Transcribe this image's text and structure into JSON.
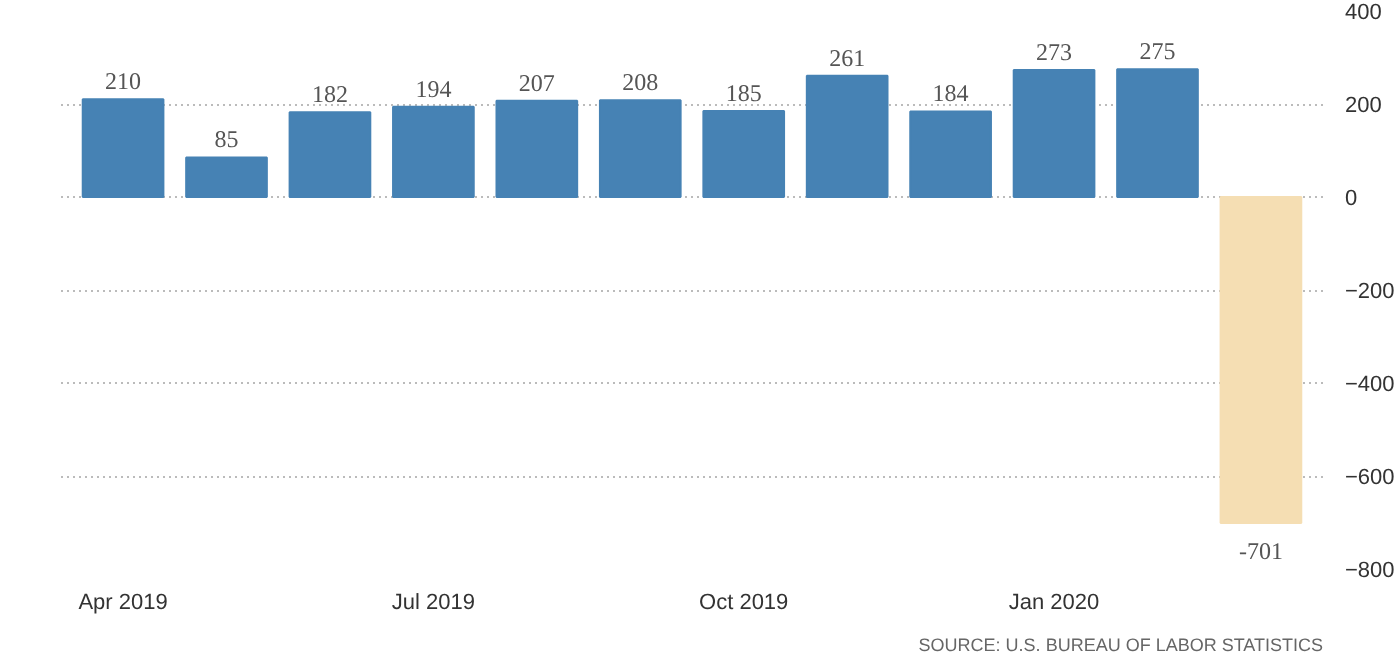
{
  "chart_data": {
    "type": "bar",
    "categories": [
      "Apr 2019",
      null,
      null,
      "Jul 2019",
      null,
      null,
      "Oct 2019",
      null,
      null,
      "Jan 2020",
      null,
      null
    ],
    "values": [
      210,
      85,
      182,
      194,
      207,
      208,
      185,
      261,
      184,
      273,
      275,
      -701
    ],
    "colors": [
      "#4682b4",
      "#4682b4",
      "#4682b4",
      "#4682b4",
      "#4682b4",
      "#4682b4",
      "#4682b4",
      "#4682b4",
      "#4682b4",
      "#4682b4",
      "#4682b4",
      "#f5deb3"
    ],
    "ylim": [
      -800,
      400
    ],
    "yticks": [
      -800,
      -600,
      -400,
      -200,
      0,
      200,
      400
    ],
    "grid": "y",
    "data_labels": true,
    "annotations": [
      "SOURCE: U.S. BUREAU OF LABOR STATISTICS"
    ]
  }
}
